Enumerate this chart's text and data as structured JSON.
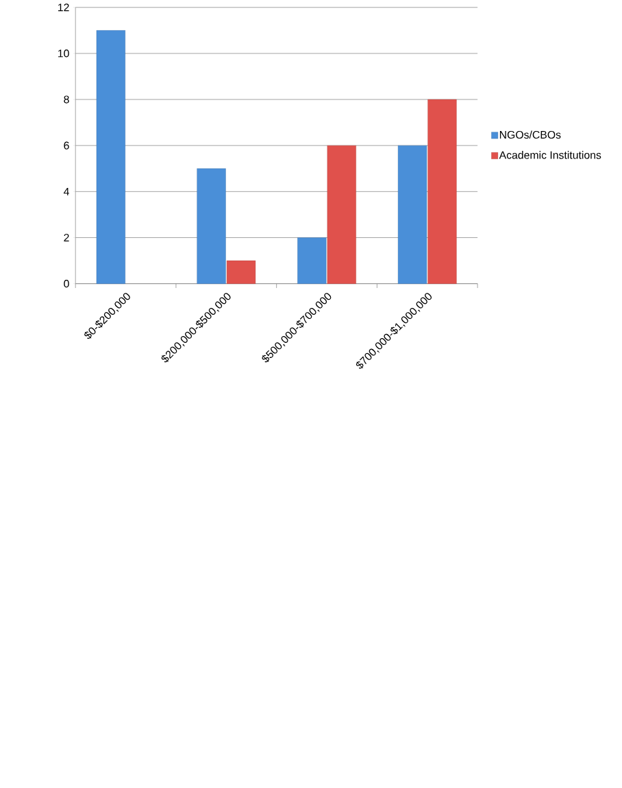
{
  "chart_data": {
    "type": "bar",
    "categories": [
      "$0-$200,000",
      "$200,000-$500,000",
      "$500,000-$700,000",
      "$700,000-$1,000,000"
    ],
    "series": [
      {
        "name": "NGOs/CBOs",
        "color": "#4a8fd8",
        "values": [
          11,
          5,
          2,
          6
        ]
      },
      {
        "name": "Academic Institutions",
        "color": "#e0514c",
        "values": [
          null,
          1,
          6,
          8
        ]
      }
    ],
    "ylim": [
      0,
      12
    ],
    "yticks": [
      0,
      2,
      4,
      6,
      8,
      10,
      12
    ],
    "grid": "y",
    "legend": "right"
  }
}
